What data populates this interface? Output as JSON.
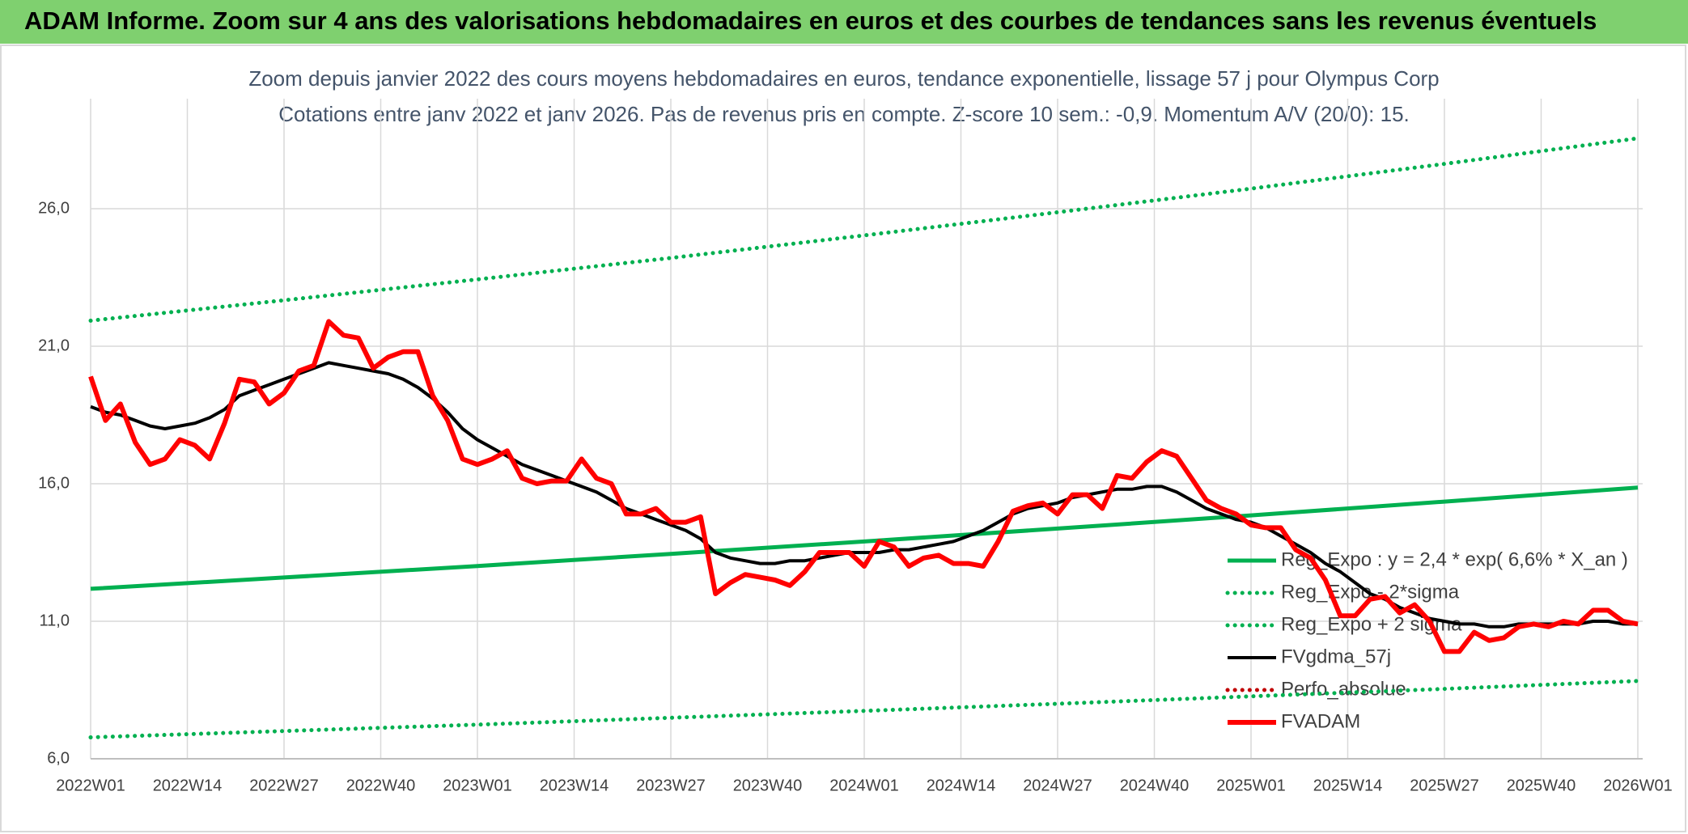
{
  "header": {
    "title": "ADAM Informe. Zoom sur 4 ans des valorisations hebdomadaires en euros et des courbes de tendances sans les revenus éventuels"
  },
  "chart_data": {
    "type": "line",
    "title": "Zoom depuis janvier 2022 des cours moyens hebdomadaires en euros, tendance exponentielle, lissage 57 j pour Olympus Corp",
    "subtitle": "Cotations entre janv 2022 et janv 2026. Pas de revenus pris en compte. Z-score 10 sem.: -0,9. Momentum A/V (20/0): 15.",
    "xlim": [
      0,
      208
    ],
    "xticks": [
      {
        "value": 0,
        "label": "2022W01"
      },
      {
        "value": 13,
        "label": "2022W14"
      },
      {
        "value": 26,
        "label": "2022W27"
      },
      {
        "value": 39,
        "label": "2022W40"
      },
      {
        "value": 52,
        "label": "2023W01"
      },
      {
        "value": 65,
        "label": "2023W14"
      },
      {
        "value": 78,
        "label": "2023W27"
      },
      {
        "value": 91,
        "label": "2023W40"
      },
      {
        "value": 104,
        "label": "2024W01"
      },
      {
        "value": 117,
        "label": "2024W14"
      },
      {
        "value": 130,
        "label": "2024W27"
      },
      {
        "value": 143,
        "label": "2024W40"
      },
      {
        "value": 156,
        "label": "2025W01"
      },
      {
        "value": 169,
        "label": "2025W14"
      },
      {
        "value": 182,
        "label": "2025W27"
      },
      {
        "value": 195,
        "label": "2025W40"
      },
      {
        "value": 208,
        "label": "2026W01"
      }
    ],
    "ylim": [
      6,
      30
    ],
    "yticks": [
      {
        "value": 6,
        "label": "6,0"
      },
      {
        "value": 11,
        "label": "11,0"
      },
      {
        "value": 16,
        "label": "16,0"
      },
      {
        "value": 21,
        "label": "21,0"
      },
      {
        "value": 26,
        "label": "26,0"
      }
    ],
    "grid": true,
    "legend": "inside-right",
    "series": [
      {
        "name": "Reg_Expo : y = 2,4 * exp( 6,6% *  X_an )",
        "color": "#00b050",
        "dash": "solid",
        "x": [
          0,
          26,
          52,
          78,
          104,
          130,
          156,
          182,
          208
        ],
        "values": [
          12.18,
          12.59,
          13.01,
          13.45,
          13.9,
          14.37,
          14.85,
          15.35,
          15.86
        ]
      },
      {
        "name": "Reg_Expo - 2*sigma",
        "color": "#00b050",
        "dash": "dotted",
        "x": [
          0,
          26,
          52,
          78,
          104,
          130,
          156,
          182,
          208
        ],
        "values": [
          6.78,
          7.01,
          7.24,
          7.49,
          7.74,
          8.0,
          8.27,
          8.54,
          8.83
        ]
      },
      {
        "name": "Reg_Expo + 2 sigma",
        "color": "#00b050",
        "dash": "dotted",
        "x": [
          0,
          26,
          52,
          78,
          104,
          130,
          156,
          182,
          208
        ],
        "values": [
          21.93,
          22.67,
          23.43,
          24.21,
          25.03,
          25.87,
          26.73,
          27.63,
          28.56
        ]
      },
      {
        "name": "FVgdma_57j",
        "color": "#000000",
        "dash": "solid",
        "x": [
          0,
          2,
          4,
          6,
          8,
          10,
          12,
          14,
          16,
          18,
          20,
          22,
          24,
          26,
          28,
          30,
          32,
          34,
          36,
          38,
          40,
          42,
          44,
          46,
          48,
          50,
          52,
          54,
          56,
          58,
          60,
          62,
          64,
          66,
          68,
          70,
          72,
          74,
          76,
          78,
          80,
          82,
          84,
          86,
          88,
          90,
          92,
          94,
          96,
          98,
          100,
          102,
          104,
          106,
          108,
          110,
          112,
          114,
          116,
          118,
          120,
          122,
          124,
          126,
          128,
          130,
          132,
          134,
          136,
          138,
          140,
          142,
          144,
          146,
          148,
          150,
          152,
          154,
          156,
          158,
          160,
          162,
          164,
          166,
          168,
          170,
          172,
          174,
          176,
          178,
          180,
          182,
          184,
          186,
          188,
          190,
          192,
          194,
          196,
          198,
          200,
          202,
          204,
          206,
          208
        ],
        "values": [
          18.8,
          18.6,
          18.5,
          18.3,
          18.1,
          18.0,
          18.1,
          18.2,
          18.4,
          18.7,
          19.2,
          19.4,
          19.6,
          19.8,
          20.0,
          20.2,
          20.4,
          20.3,
          20.2,
          20.1,
          20.0,
          19.8,
          19.5,
          19.1,
          18.6,
          18.0,
          17.6,
          17.3,
          17.0,
          16.7,
          16.5,
          16.3,
          16.1,
          15.9,
          15.7,
          15.4,
          15.1,
          14.9,
          14.7,
          14.5,
          14.3,
          14.0,
          13.5,
          13.3,
          13.2,
          13.1,
          13.1,
          13.2,
          13.2,
          13.3,
          13.4,
          13.5,
          13.5,
          13.5,
          13.6,
          13.6,
          13.7,
          13.8,
          13.9,
          14.1,
          14.3,
          14.6,
          14.9,
          15.1,
          15.2,
          15.3,
          15.5,
          15.6,
          15.7,
          15.8,
          15.8,
          15.9,
          15.9,
          15.7,
          15.4,
          15.1,
          14.9,
          14.7,
          14.6,
          14.4,
          14.1,
          13.8,
          13.5,
          13.1,
          12.8,
          12.4,
          12.0,
          11.8,
          11.5,
          11.3,
          11.1,
          11.0,
          10.9,
          10.9,
          10.8,
          10.8,
          10.9,
          10.9,
          10.9,
          10.9,
          10.9,
          11.0,
          11.0,
          10.9,
          10.9
        ]
      },
      {
        "name": "Perfo_absolue",
        "color": "#c00000",
        "dash": "dotted",
        "x": [],
        "values": []
      },
      {
        "name": "FVADAM",
        "color": "#ff0000",
        "dash": "solid",
        "x": [
          0,
          2,
          4,
          6,
          8,
          10,
          12,
          14,
          16,
          18,
          20,
          22,
          24,
          26,
          28,
          30,
          32,
          34,
          36,
          38,
          40,
          42,
          44,
          46,
          48,
          50,
          52,
          54,
          56,
          58,
          60,
          62,
          64,
          66,
          68,
          70,
          72,
          74,
          76,
          78,
          80,
          82,
          84,
          86,
          88,
          90,
          92,
          94,
          96,
          98,
          100,
          102,
          104,
          106,
          108,
          110,
          112,
          114,
          116,
          118,
          120,
          122,
          124,
          126,
          128,
          130,
          132,
          134,
          136,
          138,
          140,
          142,
          144,
          146,
          148,
          150,
          152,
          154,
          156,
          158,
          160,
          162,
          164,
          166,
          168,
          170,
          172,
          174,
          176,
          178,
          180,
          182,
          184,
          186,
          188,
          190,
          192,
          194,
          196,
          198,
          200,
          202,
          204,
          206,
          208
        ],
        "values": [
          19.9,
          18.3,
          18.9,
          17.5,
          16.7,
          16.9,
          17.6,
          17.4,
          16.9,
          18.2,
          19.8,
          19.7,
          18.9,
          19.3,
          20.1,
          20.3,
          21.9,
          21.4,
          21.3,
          20.2,
          20.6,
          20.8,
          20.8,
          19.2,
          18.3,
          16.9,
          16.7,
          16.9,
          17.2,
          16.2,
          16.0,
          16.1,
          16.1,
          16.9,
          16.2,
          16.0,
          14.9,
          14.9,
          15.1,
          14.6,
          14.6,
          14.8,
          12.0,
          12.4,
          12.7,
          12.6,
          12.5,
          12.3,
          12.8,
          13.5,
          13.5,
          13.5,
          13.0,
          13.9,
          13.7,
          13.0,
          13.3,
          13.4,
          13.1,
          13.1,
          13.0,
          13.9,
          15.0,
          15.2,
          15.3,
          14.9,
          15.6,
          15.6,
          15.1,
          16.3,
          16.2,
          16.8,
          17.2,
          17.0,
          16.2,
          15.4,
          15.1,
          14.9,
          14.5,
          14.4,
          14.4,
          13.6,
          13.3,
          12.5,
          11.2,
          11.2,
          11.8,
          11.9,
          11.3,
          11.6,
          11.0,
          9.9,
          9.9,
          10.6,
          10.3,
          10.4,
          10.8,
          10.9,
          10.8,
          11.0,
          10.9,
          11.4,
          11.4,
          11.0,
          10.9
        ]
      }
    ]
  }
}
